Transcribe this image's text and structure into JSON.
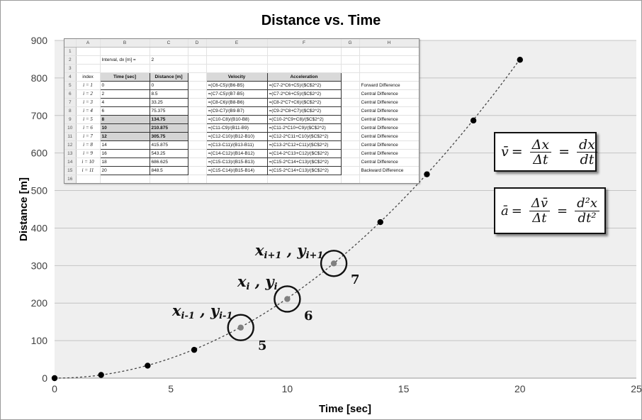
{
  "chart_data": {
    "type": "scatter",
    "title": "Distance vs. Time",
    "xlabel": "Time [sec]",
    "ylabel": "Distance [m]",
    "xlim": [
      0,
      25
    ],
    "ylim": [
      0,
      900
    ],
    "xticks": [
      0,
      5,
      10,
      15,
      20,
      25
    ],
    "yticks": [
      0,
      100,
      200,
      300,
      400,
      500,
      600,
      700,
      800,
      900
    ],
    "grid": "horizontal",
    "series": [
      {
        "x": [
          0,
          2,
          4,
          6,
          8,
          10,
          12,
          14,
          16,
          18,
          20
        ],
        "y": [
          0,
          8.5,
          33.25,
          75.375,
          134.75,
          210.875,
          305.75,
          415.875,
          543.25,
          686.625,
          848.5
        ]
      }
    ],
    "highlighted_points": [
      {
        "x": 8,
        "y": 134.75,
        "label": "5"
      },
      {
        "x": 10,
        "y": 210.875,
        "label": "6"
      },
      {
        "x": 12,
        "y": 305.75,
        "label": "7"
      }
    ],
    "colors": {
      "point": "#000000",
      "highlight_point": "#808080",
      "plot_background": "#efefef",
      "gridline": "#c4c4c4",
      "trend_line": "#444444"
    }
  },
  "annotations": {
    "p5": {
      "var1": "x",
      "sub1": "i-1",
      "sep": " , ",
      "var2": "y",
      "sub2": "i-1"
    },
    "p6": {
      "var1": "x",
      "sub1": "i",
      "sep": " , ",
      "var2": "y",
      "sub2": "i"
    },
    "p7": {
      "var1": "x",
      "sub1": "i+1",
      "sep": " , ",
      "var2": "y",
      "sub2": "i+1"
    }
  },
  "equations": {
    "velocity": {
      "lhs": "v̄",
      "eq": "=",
      "num1": "Δx",
      "den1": "Δt",
      "num2": "dx",
      "den2": "dt"
    },
    "acceleration": {
      "lhs": "ā",
      "eq": "=",
      "num1": "Δv̄",
      "den1": "Δt",
      "num2": "d²x",
      "den2": "dt²"
    }
  },
  "spreadsheet": {
    "columns": [
      "A",
      "B",
      "C",
      "D",
      "E",
      "F",
      "G",
      "H"
    ],
    "interval_label": "Interval, dx [m] =",
    "interval_value": "2",
    "headers": {
      "index": "index",
      "time": "Time [sec]",
      "distance": "Distance [m]",
      "velocity": "Velocity",
      "acceleration": "Acceleration"
    },
    "rows": [
      {
        "row": "5",
        "index": "i = 1",
        "time": "0",
        "distance": "0",
        "velocity": "=(C6-C5)/(B6-B5)",
        "acceleration": "=(C7-2*C6+C5)/($C$2^2)",
        "note": "Forward Difference",
        "hl": false
      },
      {
        "row": "6",
        "index": "i = 2",
        "time": "2",
        "distance": "8.5",
        "velocity": "=(C7-C5)/(B7-B5)",
        "acceleration": "=(C7-2*C6+C5)/($C$2^2)",
        "note": "Central Difference",
        "hl": false
      },
      {
        "row": "7",
        "index": "i = 3",
        "time": "4",
        "distance": "33.25",
        "velocity": "=(C8-C6)/(B8-B6)",
        "acceleration": "=(C8-2*C7+C6)/($C$2^2)",
        "note": "Central Difference",
        "hl": false
      },
      {
        "row": "8",
        "index": "i = 4",
        "time": "6",
        "distance": "75.375",
        "velocity": "=(C9-C7)/(B9-B7)",
        "acceleration": "=(C9-2*C8+C7)/($C$2^2)",
        "note": "Central Difference",
        "hl": false
      },
      {
        "row": "9",
        "index": "i = 5",
        "time": "8",
        "distance": "134.75",
        "velocity": "=(C10-C8)/(B10-B8)",
        "acceleration": "=(C10-2*C9+C8)/($C$2^2)",
        "note": "Central Difference",
        "hl": true
      },
      {
        "row": "10",
        "index": "i = 6",
        "time": "10",
        "distance": "210.875",
        "velocity": "=(C11-C9)/(B11-B9)",
        "acceleration": "=(C11-2*C10+C9)/($C$2^2)",
        "note": "Central Difference",
        "hl": true
      },
      {
        "row": "11",
        "index": "i = 7",
        "time": "12",
        "distance": "305.75",
        "velocity": "=(C12-C10)/(B12-B10)",
        "acceleration": "=(C12-2*C11+C10)/($C$2^2)",
        "note": "Central Difference",
        "hl": true
      },
      {
        "row": "12",
        "index": "i = 8",
        "time": "14",
        "distance": "415.875",
        "velocity": "=(C13-C11)/(B13-B11)",
        "acceleration": "=(C13-2*C12+C11)/($C$2^2)",
        "note": "Central Difference",
        "hl": false
      },
      {
        "row": "13",
        "index": "i = 9",
        "time": "16",
        "distance": "543.25",
        "velocity": "=(C14-C12)/(B14-B12)",
        "acceleration": "=(C14-2*C13+C12)/($C$2^2)",
        "note": "Central Difference",
        "hl": false
      },
      {
        "row": "14",
        "index": "i = 10",
        "time": "18",
        "distance": "686.625",
        "velocity": "=(C15-C13)/(B15-B13)",
        "acceleration": "=(C15-2*C14+C13)/($C$2^2)",
        "note": "Central Difference",
        "hl": false
      },
      {
        "row": "15",
        "index": "i = 11",
        "time": "20",
        "distance": "848.5",
        "velocity": "=(C15-C14)/(B15-B14)",
        "acceleration": "=(C15-2*C14+C13)/($C$2^2)",
        "note": "Backward Difference",
        "hl": false
      }
    ]
  }
}
